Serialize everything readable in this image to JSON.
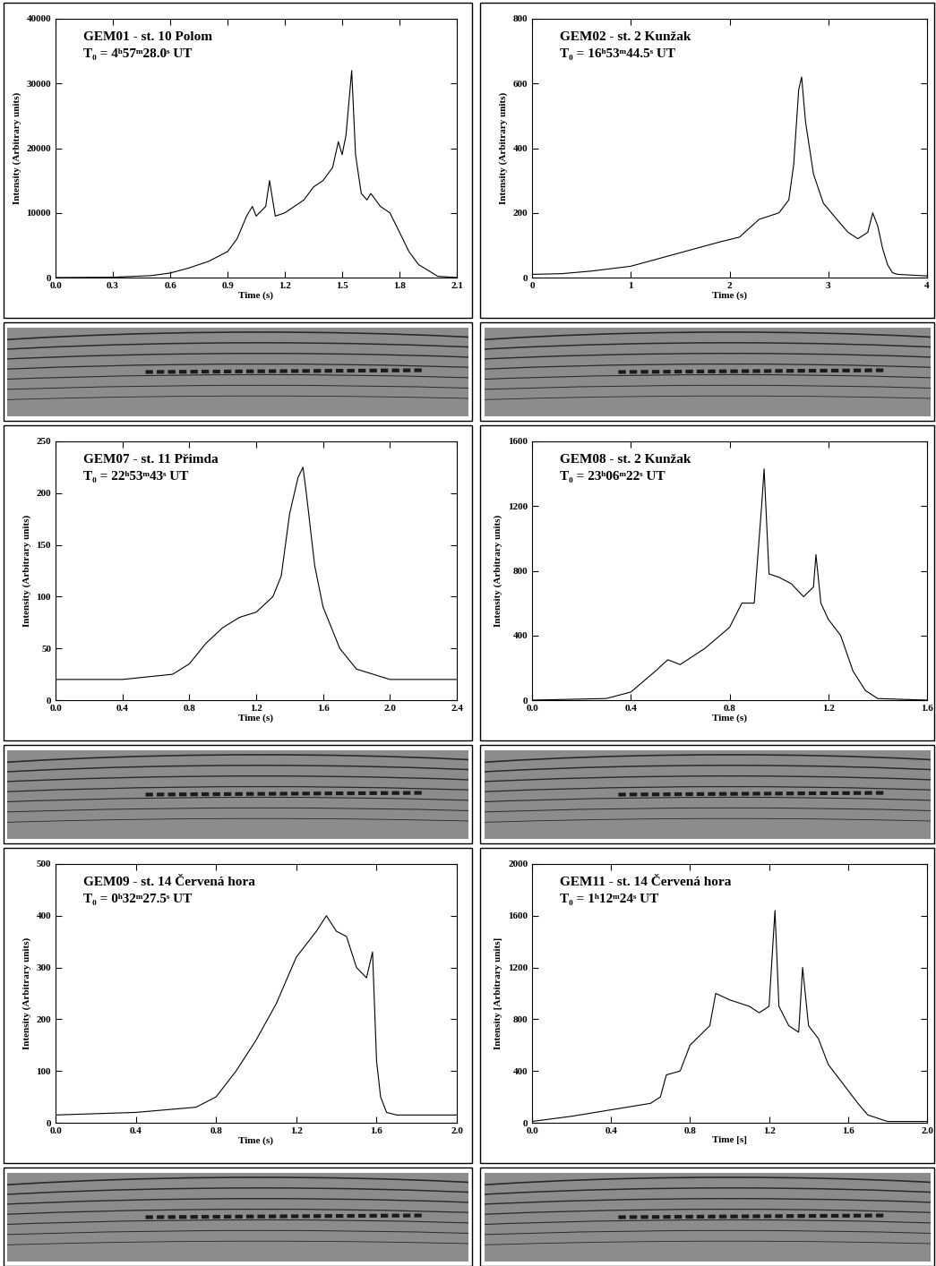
{
  "chart_data": [
    {
      "type": "line",
      "title": "GEM01 - st. 10 Polom",
      "subtitle": "T₀ = 4ʰ57ᵐ28.0ˢ UT",
      "x_label": "Time (s)",
      "y_label": "Intensity (Arbitrary units)",
      "color": "#000000",
      "x": [
        0,
        0.3,
        0.5,
        0.6,
        0.7,
        0.8,
        0.9,
        0.95,
        1.0,
        1.03,
        1.05,
        1.1,
        1.12,
        1.15,
        1.2,
        1.25,
        1.3,
        1.35,
        1.4,
        1.45,
        1.48,
        1.5,
        1.52,
        1.55,
        1.57,
        1.6,
        1.63,
        1.65,
        1.7,
        1.75,
        1.8,
        1.85,
        1.9,
        2.0,
        2.1
      ],
      "values": [
        0,
        50,
        300,
        700,
        1500,
        2500,
        4000,
        6000,
        9500,
        11000,
        9500,
        11000,
        15000,
        9500,
        10000,
        11000,
        12000,
        14000,
        15000,
        17000,
        21000,
        19000,
        22000,
        32000,
        19000,
        13000,
        12000,
        13000,
        11000,
        10000,
        7000,
        4000,
        2000,
        200,
        0
      ],
      "xlim": [
        0,
        2.1
      ],
      "xticks": [
        {
          "value": 0,
          "label": "0.0"
        },
        {
          "value": 0.3,
          "label": "0.3"
        },
        {
          "value": 0.6,
          "label": "0.6"
        },
        {
          "value": 0.9,
          "label": "0.9"
        },
        {
          "value": 1.2,
          "label": "1.2"
        },
        {
          "value": 1.5,
          "label": "1.5"
        },
        {
          "value": 1.8,
          "label": "1.8"
        },
        {
          "value": 2.1,
          "label": "2.1"
        }
      ],
      "ylim": [
        0,
        40000
      ],
      "yticks": [
        0,
        10000,
        20000,
        30000,
        40000
      ]
    },
    {
      "type": "line",
      "title": "GEM02 - st. 2 Kunžak",
      "subtitle": "T₀ = 16ʰ53ᵐ44.5ˢ UT",
      "x_label": "Time (s)",
      "y_label": "Intensity (Arbitrary units)",
      "color": "#000000",
      "x": [
        0,
        0.3,
        0.6,
        1.0,
        1.3,
        1.6,
        1.9,
        2.1,
        2.3,
        2.5,
        2.6,
        2.65,
        2.7,
        2.73,
        2.77,
        2.85,
        2.95,
        3.1,
        3.2,
        3.3,
        3.4,
        3.45,
        3.5,
        3.55,
        3.6,
        3.65,
        3.7,
        4.0
      ],
      "values": [
        10,
        12,
        20,
        35,
        60,
        85,
        110,
        125,
        180,
        200,
        240,
        350,
        580,
        620,
        480,
        320,
        230,
        175,
        140,
        120,
        140,
        200,
        160,
        90,
        40,
        15,
        10,
        5
      ],
      "xlim": [
        0,
        4
      ],
      "xticks": [
        0,
        1,
        2,
        3,
        4
      ],
      "ylim": [
        0,
        800
      ],
      "yticks": [
        0,
        200,
        400,
        600,
        800
      ]
    },
    {
      "type": "line",
      "title": "GEM07 - st. 11 Přimda",
      "subtitle": "T₀ = 22ʰ53ᵐ43ˢ UT",
      "x_label": "Time (s)",
      "y_label": "Intensity (Arbitrary units)",
      "color": "#000000",
      "x": [
        0,
        0.4,
        0.7,
        0.8,
        0.9,
        1.0,
        1.1,
        1.2,
        1.3,
        1.35,
        1.4,
        1.45,
        1.48,
        1.5,
        1.55,
        1.6,
        1.7,
        1.8,
        2.0,
        2.4
      ],
      "values": [
        20,
        20,
        25,
        35,
        55,
        70,
        80,
        85,
        100,
        120,
        180,
        215,
        225,
        200,
        130,
        90,
        50,
        30,
        20,
        20
      ],
      "xlim": [
        0,
        2.4
      ],
      "xticks": [
        {
          "value": 0,
          "label": "0.0"
        },
        {
          "value": 0.4,
          "label": "0.4"
        },
        {
          "value": 0.8,
          "label": "0.8"
        },
        {
          "value": 1.2,
          "label": "1.2"
        },
        {
          "value": 1.6,
          "label": "1.6"
        },
        {
          "value": 2.0,
          "label": "2.0"
        },
        {
          "value": 2.4,
          "label": "2.4"
        }
      ],
      "ylim": [
        0,
        250
      ],
      "yticks": [
        0,
        50,
        100,
        150,
        200,
        250
      ]
    },
    {
      "type": "line",
      "title": "GEM08 - st. 2 Kunžak",
      "subtitle": "T₀ = 23ʰ06ᵐ22ˢ UT",
      "x_label": "Time (s)",
      "y_label": "Intensity (Arbitrary units)",
      "color": "#000000",
      "x": [
        0,
        0.3,
        0.4,
        0.5,
        0.55,
        0.6,
        0.7,
        0.8,
        0.85,
        0.9,
        0.93,
        0.94,
        0.96,
        1.0,
        1.05,
        1.1,
        1.14,
        1.15,
        1.17,
        1.2,
        1.25,
        1.3,
        1.35,
        1.4,
        1.6
      ],
      "values": [
        0,
        10,
        50,
        180,
        250,
        220,
        320,
        450,
        600,
        600,
        1200,
        1430,
        780,
        760,
        720,
        640,
        700,
        900,
        600,
        500,
        400,
        180,
        60,
        10,
        0
      ],
      "xlim": [
        0,
        1.6
      ],
      "xticks": [
        {
          "value": 0,
          "label": "0.0"
        },
        {
          "value": 0.4,
          "label": "0.4"
        },
        {
          "value": 0.8,
          "label": "0.8"
        },
        {
          "value": 1.2,
          "label": "1.2"
        },
        {
          "value": 1.6,
          "label": "1.6"
        }
      ],
      "ylim": [
        0,
        1600
      ],
      "yticks": [
        0,
        400,
        800,
        1200,
        1600
      ]
    },
    {
      "type": "line",
      "title": "GEM09 - st. 14 Červená hora",
      "subtitle": "T₀ = 0ʰ32ᵐ27.5ˢ UT",
      "x_label": "Time (s)",
      "y_label": "Intensity (Arbitrary units)",
      "color": "#000000",
      "x": [
        0,
        0.4,
        0.7,
        0.8,
        0.9,
        1.0,
        1.1,
        1.2,
        1.3,
        1.35,
        1.4,
        1.45,
        1.5,
        1.55,
        1.58,
        1.6,
        1.62,
        1.65,
        1.7,
        2.0
      ],
      "values": [
        15,
        20,
        30,
        50,
        100,
        160,
        230,
        320,
        370,
        400,
        370,
        360,
        300,
        280,
        330,
        120,
        50,
        20,
        15,
        15
      ],
      "xlim": [
        0,
        2.0
      ],
      "xticks": [
        {
          "value": 0,
          "label": "0.0"
        },
        {
          "value": 0.4,
          "label": "0.4"
        },
        {
          "value": 0.8,
          "label": "0.8"
        },
        {
          "value": 1.2,
          "label": "1.2"
        },
        {
          "value": 1.6,
          "label": "1.6"
        },
        {
          "value": 2.0,
          "label": "2.0"
        }
      ],
      "ylim": [
        0,
        500
      ],
      "yticks": [
        0,
        100,
        200,
        300,
        400,
        500
      ]
    },
    {
      "type": "line",
      "title": "GEM11 - st. 14 Červená hora",
      "subtitle": "T₀ = 1ʰ12ᵐ24ˢ UT",
      "x_label": "Time [s]",
      "y_label": "Intensity [Arbitrary units]",
      "color": "#000000",
      "x": [
        0,
        0.2,
        0.4,
        0.6,
        0.65,
        0.68,
        0.75,
        0.8,
        0.9,
        0.93,
        1.0,
        1.1,
        1.15,
        1.2,
        1.23,
        1.25,
        1.3,
        1.35,
        1.37,
        1.4,
        1.45,
        1.5,
        1.55,
        1.6,
        1.65,
        1.7,
        1.8,
        2.0
      ],
      "values": [
        10,
        50,
        100,
        150,
        200,
        370,
        400,
        600,
        750,
        1000,
        950,
        900,
        850,
        900,
        1640,
        900,
        750,
        700,
        1200,
        750,
        650,
        450,
        350,
        250,
        150,
        60,
        10,
        10
      ],
      "xlim": [
        0,
        2.0
      ],
      "xticks": [
        {
          "value": 0,
          "label": "0.0"
        },
        {
          "value": 0.4,
          "label": "0.4"
        },
        {
          "value": 0.8,
          "label": "0.8"
        },
        {
          "value": 1.2,
          "label": "1.2"
        },
        {
          "value": 1.6,
          "label": "1.6"
        },
        {
          "value": 2.0,
          "label": "2.0"
        }
      ],
      "ylim": [
        0,
        2000
      ],
      "yticks": [
        0,
        400,
        800,
        1200,
        1600,
        2000
      ]
    }
  ]
}
